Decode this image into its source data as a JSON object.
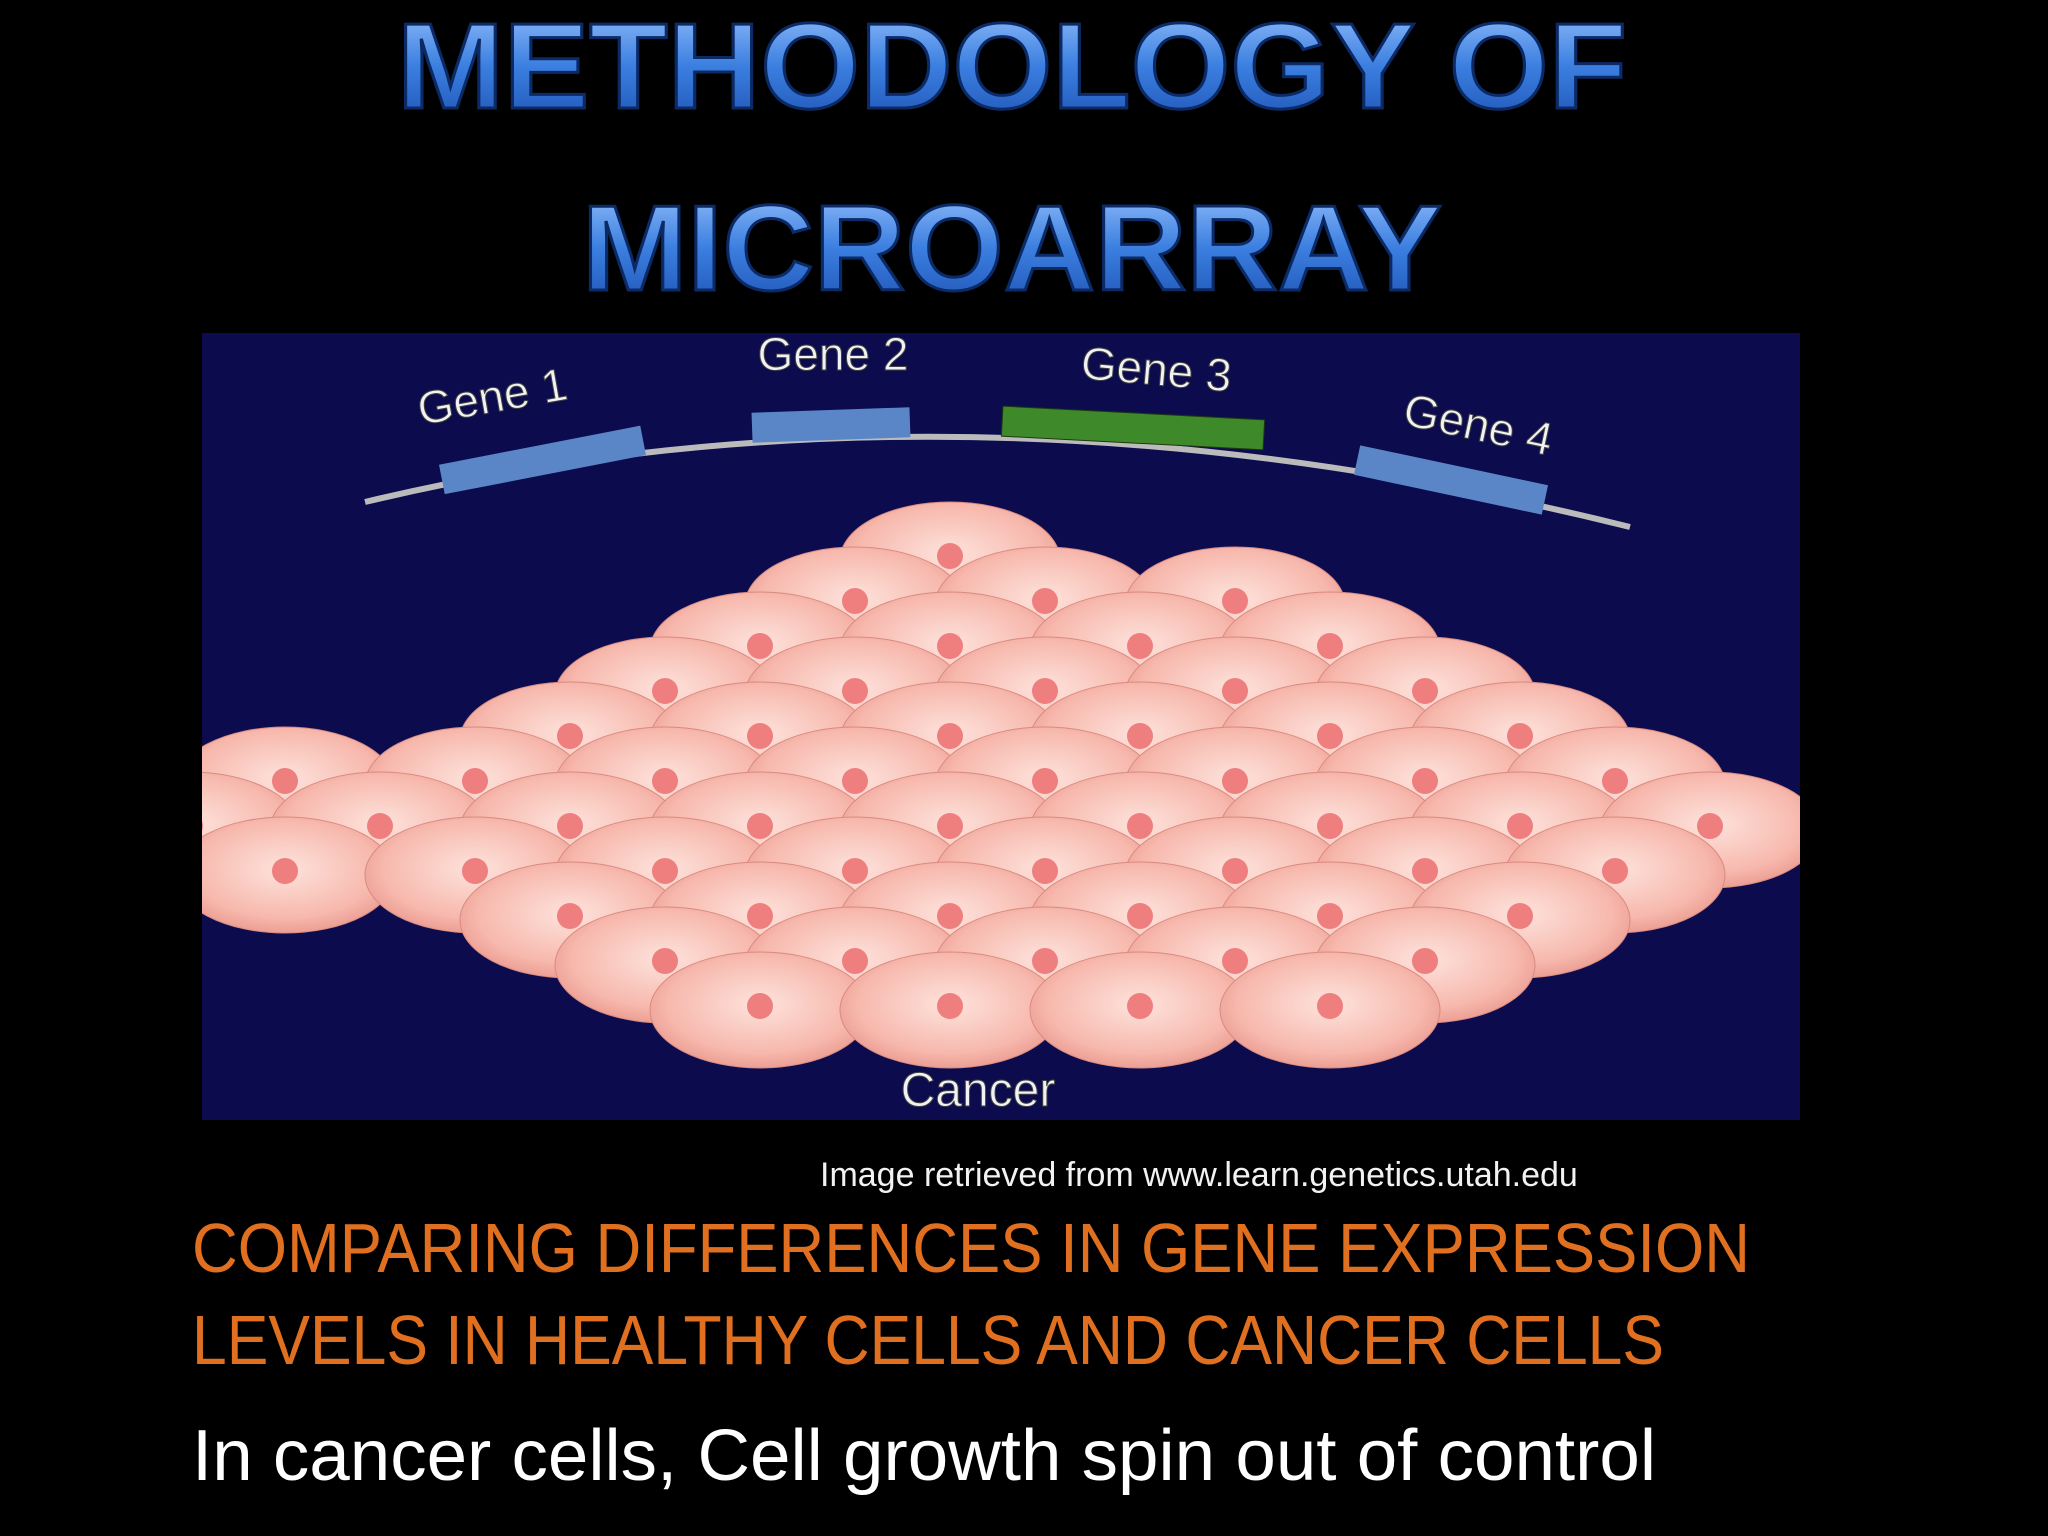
{
  "title": {
    "line1": "METHODOLOGY OF",
    "line2": "MICROARRAY"
  },
  "figure": {
    "genes": [
      "Gene 1",
      "Gene 2",
      "Gene 3",
      "Gene 4"
    ],
    "label": "Cancer"
  },
  "caption": "Image retrieved from www.learn.genetics.utah.edu",
  "heading": {
    "line1": "COMPARING DIFFERENCES IN GENE EXPRESSION",
    "line2": "LEVELS IN HEALTHY CELLS AND CANCER CELLS"
  },
  "body": "In cancer cells, Cell growth spin out of control"
}
